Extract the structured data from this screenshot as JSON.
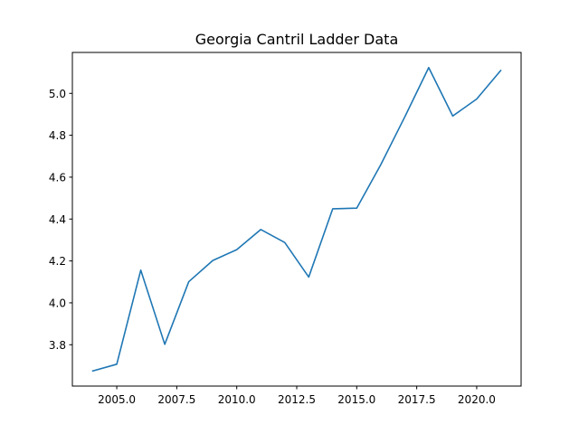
{
  "chart_data": {
    "type": "line",
    "title": "Georgia Cantril Ladder Data",
    "xlabel": "",
    "ylabel": "",
    "x": [
      2004,
      2005,
      2006,
      2007,
      2008,
      2009,
      2010,
      2011,
      2012,
      2013,
      2014,
      2015,
      2016,
      2017,
      2018,
      2019,
      2020,
      2021
    ],
    "series": [
      {
        "values": [
          3.675,
          3.707,
          4.156,
          3.802,
          4.101,
          4.202,
          4.254,
          4.35,
          4.288,
          4.123,
          4.449,
          4.452,
          4.659,
          4.887,
          5.123,
          4.892,
          4.973,
          5.109
        ],
        "color": "#1f77b4"
      }
    ],
    "xlim": [
      2003.15,
      2021.85
    ],
    "ylim": [
      3.6026,
      5.1954
    ],
    "xticks": [
      2005.0,
      2007.5,
      2010.0,
      2012.5,
      2015.0,
      2017.5,
      2020.0
    ],
    "xtick_labels": [
      "2005.0",
      "2007.5",
      "2010.0",
      "2012.5",
      "2015.0",
      "2017.5",
      "2020.0"
    ],
    "yticks": [
      3.8,
      4.0,
      4.2,
      4.4,
      4.6,
      4.8,
      5.0
    ],
    "ytick_labels": [
      "3.8",
      "4.0",
      "4.2",
      "4.4",
      "4.6",
      "4.8",
      "5.0"
    ],
    "grid": false,
    "legend": "none"
  }
}
